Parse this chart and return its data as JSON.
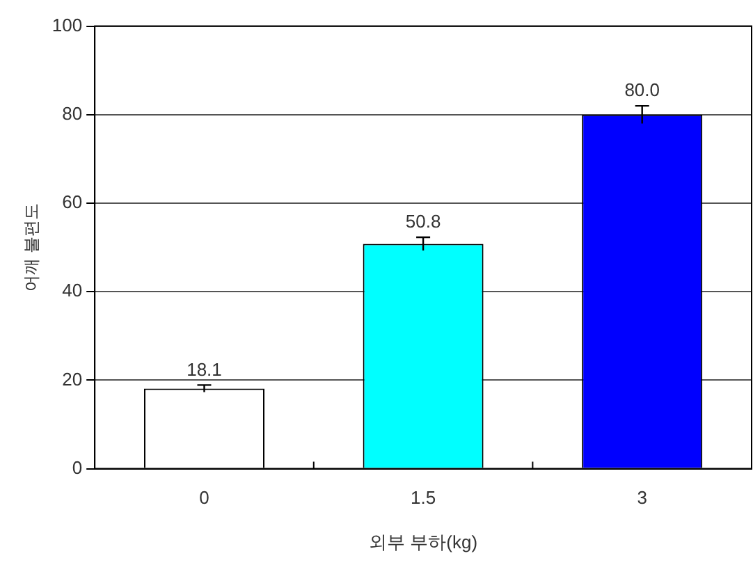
{
  "chart_data": {
    "type": "bar",
    "xlabel": "외부 부하(kg)",
    "ylabel": "어깨 불편도",
    "categories": [
      "0",
      "1.5",
      "3"
    ],
    "values": [
      18.1,
      50.8,
      80.0
    ],
    "colors": [
      "#ffffff",
      "#00ffff",
      "#0000ff"
    ],
    "errors": [
      0.8,
      1.5,
      2.0
    ],
    "value_labels": [
      "18.1",
      "50.8",
      "80.0"
    ],
    "ylim": [
      0,
      100
    ],
    "yticks": [
      0,
      20,
      40,
      60,
      80,
      100
    ],
    "grid": "y"
  }
}
